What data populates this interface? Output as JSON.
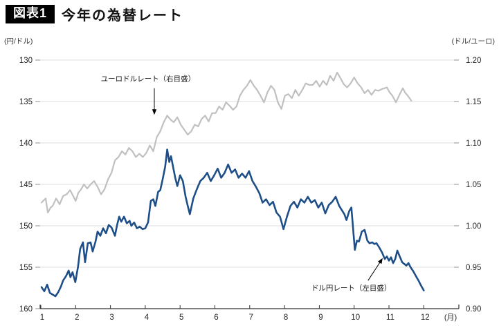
{
  "figure": {
    "badge": "図表1",
    "title": "今年の為替レート",
    "left_axis_unit": "(円/ドル)",
    "right_axis_unit": "(ドル/ユーロ)"
  },
  "chart_data": {
    "type": "line",
    "title": "今年の為替レート",
    "grid": true,
    "legend_position": "none",
    "x_axis": {
      "ticks": [
        "1",
        "2",
        "3",
        "4",
        "5",
        "6",
        "7",
        "8",
        "9",
        "10",
        "11",
        "12"
      ],
      "unit_label": "(月)",
      "range_months": [
        1,
        13.0
      ]
    },
    "left_axis": {
      "unit": "円/ドル",
      "ticks": [
        "130",
        "135",
        "140",
        "145",
        "150",
        "155",
        "160"
      ],
      "range": [
        130,
        160
      ],
      "inverted": true
    },
    "right_axis": {
      "unit": "ドル/ユーロ",
      "ticks": [
        "1.20",
        "1.15",
        "1.10",
        "1.05",
        "1.00",
        "0.95",
        "0.90"
      ],
      "range": [
        0.9,
        1.2
      ]
    },
    "colors": {
      "usdjpy": "#1e4e88",
      "eurusd": "#c0c0c0",
      "grid": "#dcdcdc",
      "axis": "#333333",
      "tick_text": "#262626",
      "annotation": "#000000"
    },
    "series": [
      {
        "name": "ドル円レート（左目盛）",
        "axis": "left",
        "color_key": "usdjpy",
        "width": 2.6,
        "points": [
          [
            1.02,
            157.4
          ],
          [
            1.1,
            157.9
          ],
          [
            1.18,
            157.1
          ],
          [
            1.26,
            158.1
          ],
          [
            1.34,
            158.3
          ],
          [
            1.42,
            158.5
          ],
          [
            1.5,
            158.0
          ],
          [
            1.58,
            157.3
          ],
          [
            1.64,
            156.6
          ],
          [
            1.72,
            156.1
          ],
          [
            1.8,
            155.4
          ],
          [
            1.85,
            156.2
          ],
          [
            1.91,
            155.6
          ],
          [
            1.99,
            156.8
          ],
          [
            2.07,
            154.9
          ],
          [
            2.13,
            152.8
          ],
          [
            2.21,
            152.0
          ],
          [
            2.27,
            154.4
          ],
          [
            2.35,
            152.1
          ],
          [
            2.43,
            152.0
          ],
          [
            2.49,
            153.1
          ],
          [
            2.57,
            151.9
          ],
          [
            2.63,
            150.7
          ],
          [
            2.71,
            151.2
          ],
          [
            2.79,
            150.3
          ],
          [
            2.87,
            150.9
          ],
          [
            2.95,
            149.9
          ],
          [
            3.03,
            150.2
          ],
          [
            3.13,
            151.2
          ],
          [
            3.19,
            149.9
          ],
          [
            3.25,
            148.9
          ],
          [
            3.31,
            149.5
          ],
          [
            3.39,
            148.9
          ],
          [
            3.47,
            149.7
          ],
          [
            3.55,
            149.4
          ],
          [
            3.6,
            150.0
          ],
          [
            3.68,
            149.6
          ],
          [
            3.76,
            150.3
          ],
          [
            3.84,
            150.1
          ],
          [
            3.92,
            150.4
          ],
          [
            4.0,
            150.3
          ],
          [
            4.08,
            149.6
          ],
          [
            4.16,
            147.0
          ],
          [
            4.23,
            146.8
          ],
          [
            4.29,
            147.6
          ],
          [
            4.37,
            145.9
          ],
          [
            4.43,
            145.7
          ],
          [
            4.49,
            144.6
          ],
          [
            4.57,
            142.9
          ],
          [
            4.63,
            140.8
          ],
          [
            4.69,
            142.3
          ],
          [
            4.74,
            141.6
          ],
          [
            4.8,
            142.9
          ],
          [
            4.86,
            144.2
          ],
          [
            4.92,
            145.2
          ],
          [
            5.0,
            143.9
          ],
          [
            5.08,
            144.6
          ],
          [
            5.16,
            146.5
          ],
          [
            5.22,
            147.6
          ],
          [
            5.28,
            148.6
          ],
          [
            5.38,
            146.7
          ],
          [
            5.48,
            145.6
          ],
          [
            5.58,
            144.6
          ],
          [
            5.68,
            144.2
          ],
          [
            5.78,
            143.6
          ],
          [
            5.88,
            144.6
          ],
          [
            5.98,
            143.9
          ],
          [
            6.08,
            143.1
          ],
          [
            6.18,
            144.2
          ],
          [
            6.28,
            143.6
          ],
          [
            6.38,
            142.6
          ],
          [
            6.48,
            143.6
          ],
          [
            6.58,
            143.2
          ],
          [
            6.68,
            144.2
          ],
          [
            6.78,
            143.7
          ],
          [
            6.88,
            144.2
          ],
          [
            6.98,
            143.4
          ],
          [
            7.08,
            144.6
          ],
          [
            7.18,
            145.3
          ],
          [
            7.28,
            146.1
          ],
          [
            7.37,
            147.2
          ],
          [
            7.47,
            146.8
          ],
          [
            7.57,
            147.5
          ],
          [
            7.67,
            147.1
          ],
          [
            7.77,
            148.4
          ],
          [
            7.87,
            148.9
          ],
          [
            7.97,
            150.4
          ],
          [
            8.07,
            148.9
          ],
          [
            8.17,
            147.6
          ],
          [
            8.27,
            147.1
          ],
          [
            8.37,
            147.8
          ],
          [
            8.47,
            146.8
          ],
          [
            8.57,
            147.2
          ],
          [
            8.67,
            146.5
          ],
          [
            8.77,
            147.2
          ],
          [
            8.87,
            146.9
          ],
          [
            8.97,
            147.8
          ],
          [
            9.07,
            147.2
          ],
          [
            9.17,
            148.5
          ],
          [
            9.27,
            147.5
          ],
          [
            9.37,
            147.1
          ],
          [
            9.47,
            146.5
          ],
          [
            9.57,
            147.6
          ],
          [
            9.66,
            148.2
          ],
          [
            9.72,
            148.6
          ],
          [
            9.78,
            149.3
          ],
          [
            9.86,
            148.2
          ],
          [
            9.92,
            147.8
          ],
          [
            10.02,
            152.9
          ],
          [
            10.08,
            151.8
          ],
          [
            10.14,
            151.9
          ],
          [
            10.22,
            150.7
          ],
          [
            10.3,
            150.5
          ],
          [
            10.38,
            151.8
          ],
          [
            10.44,
            152.1
          ],
          [
            10.52,
            152.0
          ],
          [
            10.58,
            152.2
          ],
          [
            10.64,
            152.1
          ],
          [
            10.72,
            152.6
          ],
          [
            10.8,
            153.2
          ],
          [
            10.88,
            154.0
          ],
          [
            10.94,
            153.7
          ],
          [
            11.0,
            154.2
          ],
          [
            11.06,
            153.8
          ],
          [
            11.12,
            154.5
          ],
          [
            11.18,
            154.0
          ],
          [
            11.24,
            153.0
          ],
          [
            11.3,
            153.6
          ],
          [
            11.38,
            154.4
          ],
          [
            11.44,
            154.6
          ],
          [
            11.5,
            154.8
          ],
          [
            11.56,
            154.5
          ],
          [
            11.62,
            155.0
          ],
          [
            11.7,
            155.5
          ],
          [
            11.78,
            156.1
          ],
          [
            11.86,
            156.7
          ],
          [
            11.92,
            157.2
          ],
          [
            12.0,
            157.8
          ]
        ]
      },
      {
        "name": "ユーロドルレート（右目盛）",
        "axis": "right",
        "color_key": "eurusd",
        "width": 2.2,
        "points": [
          [
            1.02,
            1.028
          ],
          [
            1.14,
            1.033
          ],
          [
            1.2,
            1.016
          ],
          [
            1.28,
            1.022
          ],
          [
            1.34,
            1.024
          ],
          [
            1.44,
            1.033
          ],
          [
            1.54,
            1.026
          ],
          [
            1.64,
            1.036
          ],
          [
            1.74,
            1.038
          ],
          [
            1.84,
            1.043
          ],
          [
            1.94,
            1.035
          ],
          [
            2.0,
            1.03
          ],
          [
            2.08,
            1.04
          ],
          [
            2.14,
            1.043
          ],
          [
            2.24,
            1.05
          ],
          [
            2.33,
            1.045
          ],
          [
            2.43,
            1.05
          ],
          [
            2.53,
            1.054
          ],
          [
            2.63,
            1.047
          ],
          [
            2.73,
            1.038
          ],
          [
            2.83,
            1.044
          ],
          [
            2.93,
            1.056
          ],
          [
            3.03,
            1.064
          ],
          [
            3.13,
            1.079
          ],
          [
            3.23,
            1.083
          ],
          [
            3.33,
            1.09
          ],
          [
            3.43,
            1.086
          ],
          [
            3.53,
            1.094
          ],
          [
            3.63,
            1.09
          ],
          [
            3.73,
            1.083
          ],
          [
            3.83,
            1.087
          ],
          [
            3.93,
            1.083
          ],
          [
            4.03,
            1.088
          ],
          [
            4.13,
            1.097
          ],
          [
            4.23,
            1.09
          ],
          [
            4.33,
            1.107
          ],
          [
            4.43,
            1.114
          ],
          [
            4.53,
            1.125
          ],
          [
            4.63,
            1.133
          ],
          [
            4.73,
            1.128
          ],
          [
            4.82,
            1.125
          ],
          [
            4.92,
            1.131
          ],
          [
            5.02,
            1.122
          ],
          [
            5.12,
            1.116
          ],
          [
            5.22,
            1.11
          ],
          [
            5.32,
            1.114
          ],
          [
            5.42,
            1.122
          ],
          [
            5.52,
            1.12
          ],
          [
            5.62,
            1.129
          ],
          [
            5.72,
            1.133
          ],
          [
            5.82,
            1.126
          ],
          [
            5.92,
            1.136
          ],
          [
            6.02,
            1.136
          ],
          [
            6.12,
            1.144
          ],
          [
            6.22,
            1.14
          ],
          [
            6.32,
            1.149
          ],
          [
            6.42,
            1.145
          ],
          [
            6.52,
            1.14
          ],
          [
            6.62,
            1.144
          ],
          [
            6.72,
            1.157
          ],
          [
            6.82,
            1.164
          ],
          [
            6.92,
            1.169
          ],
          [
            7.02,
            1.176
          ],
          [
            7.12,
            1.169
          ],
          [
            7.21,
            1.164
          ],
          [
            7.31,
            1.157
          ],
          [
            7.41,
            1.149
          ],
          [
            7.51,
            1.161
          ],
          [
            7.61,
            1.169
          ],
          [
            7.71,
            1.164
          ],
          [
            7.81,
            1.149
          ],
          [
            7.91,
            1.141
          ],
          [
            8.01,
            1.157
          ],
          [
            8.11,
            1.159
          ],
          [
            8.21,
            1.154
          ],
          [
            8.31,
            1.164
          ],
          [
            8.41,
            1.157
          ],
          [
            8.51,
            1.164
          ],
          [
            8.61,
            1.172
          ],
          [
            8.71,
            1.17
          ],
          [
            8.81,
            1.17
          ],
          [
            8.91,
            1.175
          ],
          [
            9.01,
            1.168
          ],
          [
            9.11,
            1.175
          ],
          [
            9.21,
            1.17
          ],
          [
            9.31,
            1.181
          ],
          [
            9.41,
            1.175
          ],
          [
            9.51,
            1.185
          ],
          [
            9.61,
            1.178
          ],
          [
            9.7,
            1.171
          ],
          [
            9.8,
            1.167
          ],
          [
            9.9,
            1.172
          ],
          [
            10.0,
            1.179
          ],
          [
            10.1,
            1.172
          ],
          [
            10.2,
            1.167
          ],
          [
            10.3,
            1.16
          ],
          [
            10.4,
            1.164
          ],
          [
            10.5,
            1.158
          ],
          [
            10.6,
            1.164
          ],
          [
            10.7,
            1.163
          ],
          [
            10.8,
            1.165
          ],
          [
            10.94,
            1.167
          ],
          [
            11.02,
            1.161
          ],
          [
            11.1,
            1.157
          ],
          [
            11.2,
            1.149
          ],
          [
            11.3,
            1.158
          ],
          [
            11.4,
            1.166
          ],
          [
            11.46,
            1.161
          ],
          [
            11.54,
            1.157
          ],
          [
            11.64,
            1.151
          ]
        ]
      }
    ],
    "annotations": [
      {
        "text": "ユーロドルレート（右目盛）",
        "axis": "right",
        "label": {
          "m": 4.08,
          "v": 1.178
        },
        "from": {
          "m": 4.26,
          "v": 1.166
        },
        "to": {
          "m": 4.26,
          "v": 1.134
        }
      },
      {
        "text": "ドル円レート（左目盛）",
        "axis": "left",
        "label": {
          "m": 9.92,
          "v": 157.45
        },
        "from": {
          "m": 10.4,
          "v": 156.6
        },
        "to": {
          "m": 10.82,
          "v": 153.9
        }
      }
    ]
  }
}
